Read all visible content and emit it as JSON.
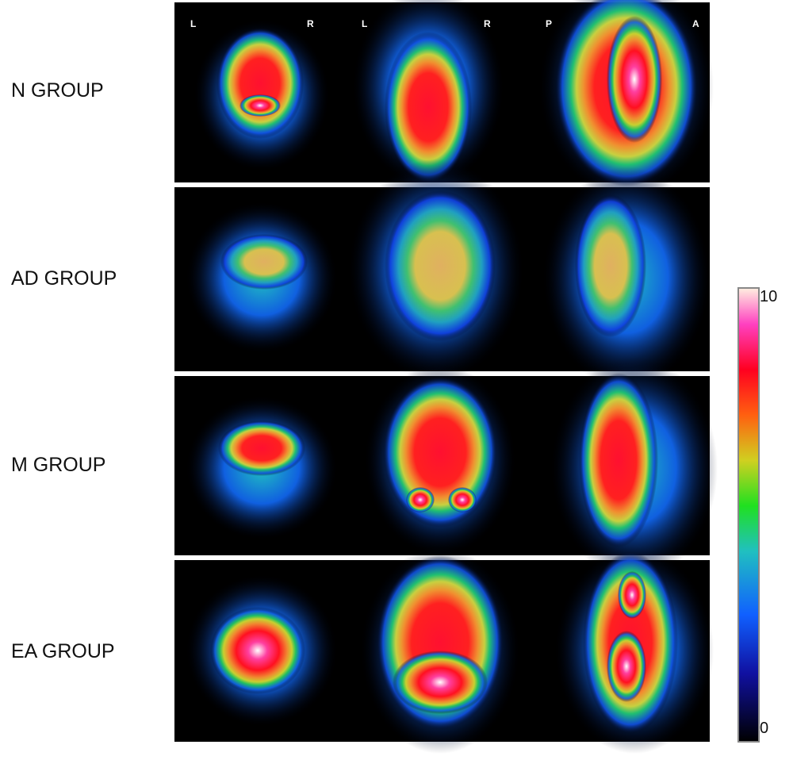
{
  "rows": [
    {
      "label": "N GROUP"
    },
    {
      "label": "AD GROUP"
    },
    {
      "label": "M GROUP"
    },
    {
      "label": "EA GROUP"
    }
  ],
  "orientation_labels": [
    "L",
    "R",
    "L",
    "R",
    "P",
    "A"
  ],
  "colorbar": {
    "max": 10,
    "min": 0
  }
}
